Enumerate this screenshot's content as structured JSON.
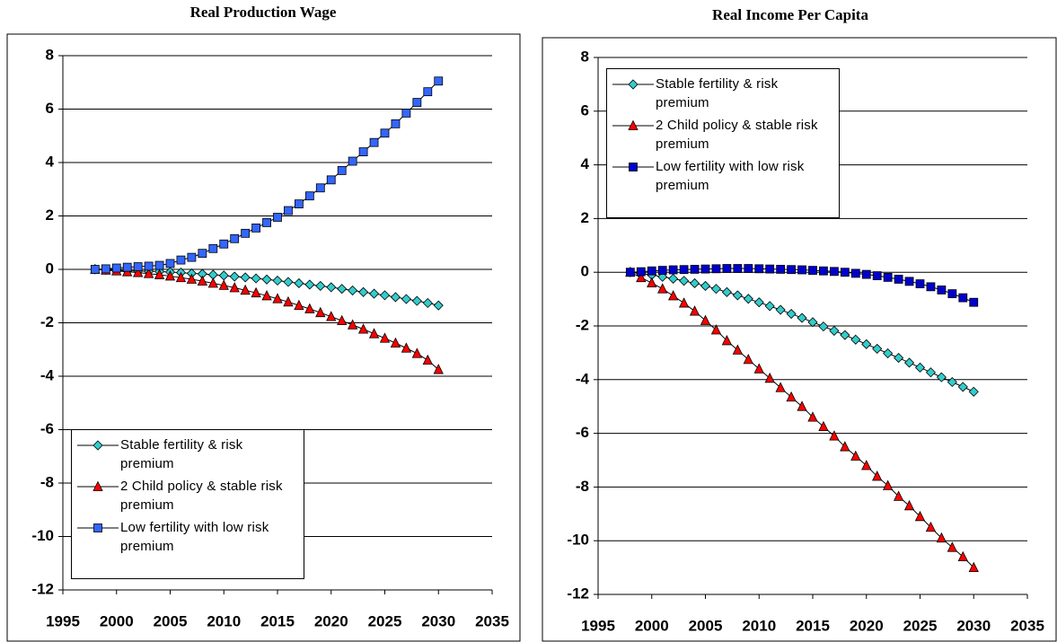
{
  "chart_data": [
    {
      "type": "line",
      "title": "Real Production Wage",
      "x": [
        1998,
        1999,
        2000,
        2001,
        2002,
        2003,
        2004,
        2005,
        2006,
        2007,
        2008,
        2009,
        2010,
        2011,
        2012,
        2013,
        2014,
        2015,
        2016,
        2017,
        2018,
        2019,
        2020,
        2021,
        2022,
        2023,
        2024,
        2025,
        2026,
        2027,
        2028,
        2029,
        2030
      ],
      "xlim": [
        1995,
        2035
      ],
      "xticks": [
        1995,
        2000,
        2005,
        2010,
        2015,
        2020,
        2025,
        2030,
        2035
      ],
      "ylim": [
        -12,
        8
      ],
      "yticks": [
        -12,
        -10,
        -8,
        -6,
        -4,
        -2,
        0,
        2,
        4,
        6,
        8
      ],
      "grid": true,
      "legend": "lower left",
      "series": [
        {
          "name": "Stable fertility & risk premium",
          "color": "#33cccc",
          "marker": "diamond",
          "values": [
            0,
            -0.02,
            -0.03,
            -0.05,
            -0.06,
            -0.07,
            -0.08,
            -0.1,
            -0.12,
            -0.15,
            -0.17,
            -0.2,
            -0.23,
            -0.27,
            -0.3,
            -0.34,
            -0.38,
            -0.42,
            -0.47,
            -0.52,
            -0.57,
            -0.62,
            -0.67,
            -0.73,
            -0.79,
            -0.85,
            -0.91,
            -0.97,
            -1.04,
            -1.11,
            -1.18,
            -1.26,
            -1.35
          ]
        },
        {
          "name": "2 Child policy & stable risk premium",
          "color": "#ff0000",
          "marker": "triangle",
          "values": [
            0,
            -0.03,
            -0.06,
            -0.09,
            -0.12,
            -0.16,
            -0.2,
            -0.25,
            -0.31,
            -0.37,
            -0.44,
            -0.52,
            -0.6,
            -0.69,
            -0.78,
            -0.88,
            -0.99,
            -1.1,
            -1.22,
            -1.35,
            -1.48,
            -1.62,
            -1.77,
            -1.92,
            -2.08,
            -2.24,
            -2.41,
            -2.58,
            -2.76,
            -2.95,
            -3.15,
            -3.4,
            -3.75
          ]
        },
        {
          "name": "Low fertility with low risk premium",
          "color": "#3366ff",
          "marker": "square",
          "values": [
            0,
            0.02,
            0.05,
            0.08,
            0.1,
            0.12,
            0.15,
            0.22,
            0.35,
            0.45,
            0.6,
            0.78,
            0.95,
            1.15,
            1.35,
            1.55,
            1.75,
            1.95,
            2.2,
            2.45,
            2.75,
            3.05,
            3.35,
            3.7,
            4.05,
            4.4,
            4.75,
            5.1,
            5.45,
            5.85,
            6.25,
            6.65,
            7.05
          ]
        }
      ]
    },
    {
      "type": "line",
      "title": "Real Income Per Capita",
      "x": [
        1998,
        1999,
        2000,
        2001,
        2002,
        2003,
        2004,
        2005,
        2006,
        2007,
        2008,
        2009,
        2010,
        2011,
        2012,
        2013,
        2014,
        2015,
        2016,
        2017,
        2018,
        2019,
        2020,
        2021,
        2022,
        2023,
        2024,
        2025,
        2026,
        2027,
        2028,
        2029,
        2030
      ],
      "xlim": [
        1995,
        2035
      ],
      "xticks": [
        1995,
        2000,
        2005,
        2010,
        2015,
        2020,
        2025,
        2030,
        2035
      ],
      "ylim": [
        -12,
        8
      ],
      "yticks": [
        -12,
        -10,
        -8,
        -6,
        -4,
        -2,
        0,
        2,
        4,
        6,
        8
      ],
      "grid": true,
      "legend": "upper left",
      "series": [
        {
          "name": "Stable fertility & risk premium",
          "color": "#33cccc",
          "marker": "diamond",
          "values": [
            0,
            -0.05,
            -0.1,
            -0.17,
            -0.24,
            -0.32,
            -0.41,
            -0.51,
            -0.62,
            -0.74,
            -0.86,
            -0.99,
            -1.12,
            -1.26,
            -1.4,
            -1.55,
            -1.7,
            -1.86,
            -2.02,
            -2.18,
            -2.34,
            -2.51,
            -2.68,
            -2.85,
            -3.02,
            -3.19,
            -3.37,
            -3.55,
            -3.73,
            -3.91,
            -4.09,
            -4.27,
            -4.45
          ]
        },
        {
          "name": "2 Child policy & stable risk premium",
          "color": "#ff0000",
          "marker": "triangle",
          "values": [
            0,
            -0.2,
            -0.4,
            -0.62,
            -0.88,
            -1.15,
            -1.45,
            -1.8,
            -2.15,
            -2.55,
            -2.9,
            -3.25,
            -3.6,
            -3.95,
            -4.3,
            -4.65,
            -5.0,
            -5.4,
            -5.75,
            -6.1,
            -6.5,
            -6.85,
            -7.2,
            -7.6,
            -7.95,
            -8.35,
            -8.7,
            -9.1,
            -9.5,
            -9.9,
            -10.25,
            -10.6,
            -11.0
          ]
        },
        {
          "name": "Low fertility with low risk premium",
          "color": "#0000cc",
          "marker": "square",
          "values": [
            0,
            0.02,
            0.05,
            0.07,
            0.09,
            0.1,
            0.11,
            0.12,
            0.13,
            0.14,
            0.14,
            0.14,
            0.13,
            0.12,
            0.11,
            0.1,
            0.09,
            0.07,
            0.05,
            0.03,
            0,
            -0.04,
            -0.08,
            -0.13,
            -0.19,
            -0.26,
            -0.34,
            -0.43,
            -0.54,
            -0.66,
            -0.8,
            -0.95,
            -1.12
          ]
        }
      ]
    }
  ]
}
